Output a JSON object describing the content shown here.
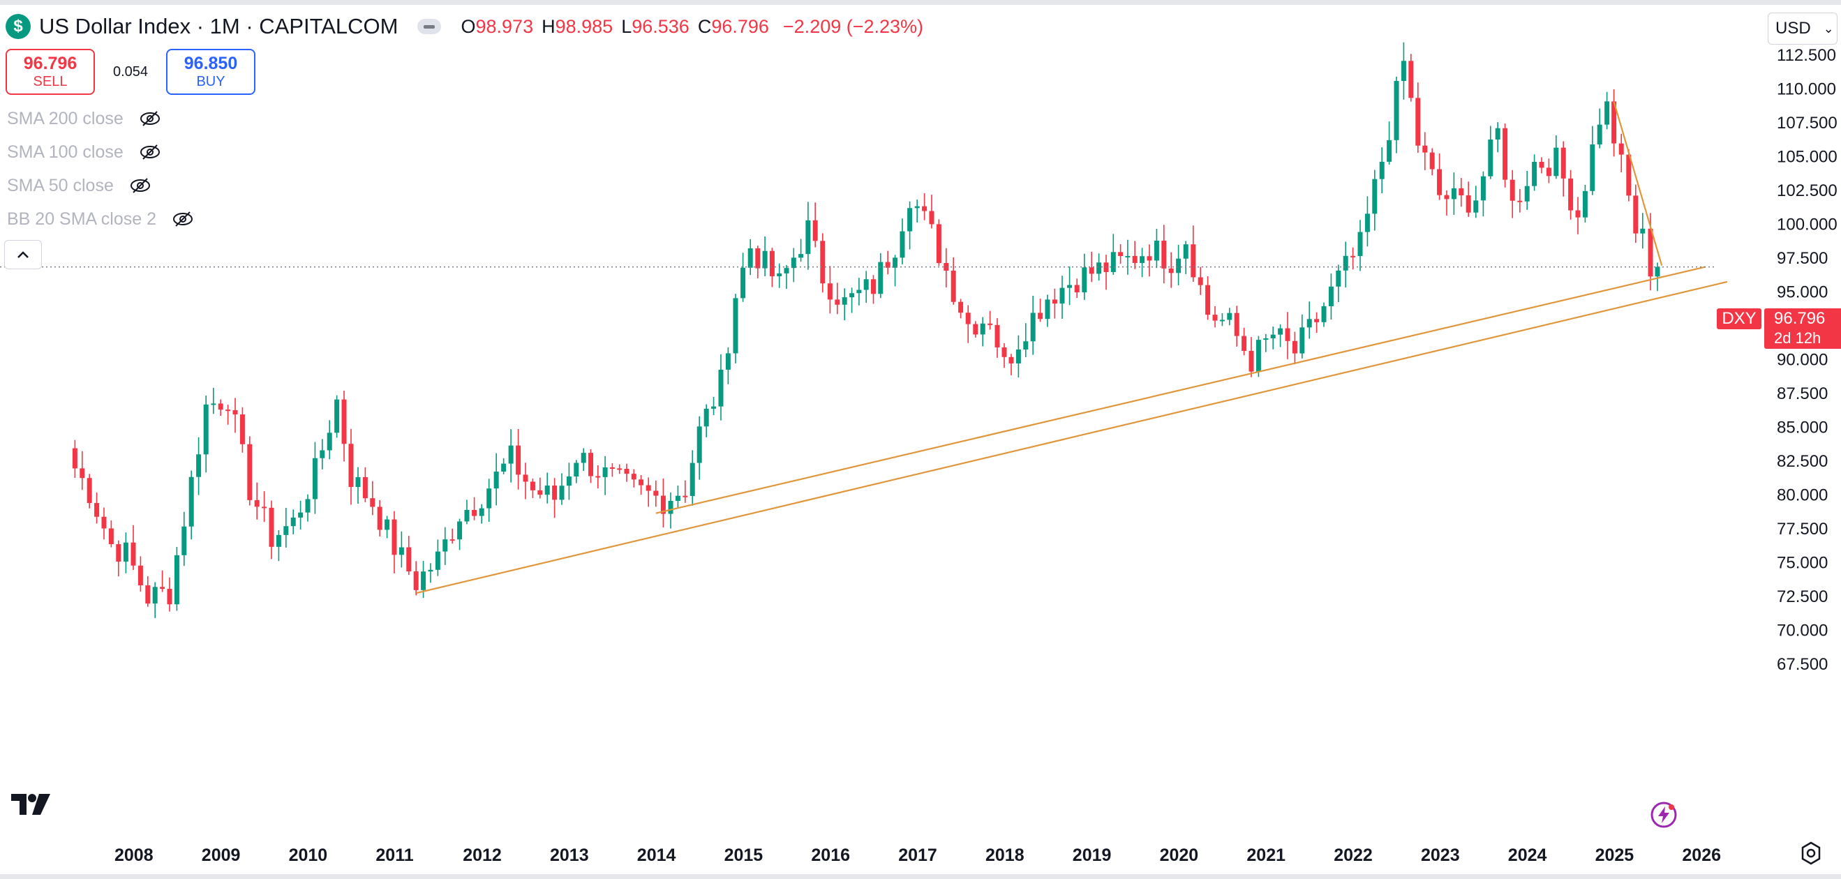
{
  "legend": {
    "logo_glyph": "$",
    "symbol_title": "US Dollar Index · 1M · CAPITALCOM",
    "open_label": "O",
    "open": "98.973",
    "high_label": "H",
    "high": "98.985",
    "low_label": "L",
    "low": "96.536",
    "close_label": "C",
    "close": "96.796",
    "change": "−2.209 (−2.23%)"
  },
  "trade": {
    "sell_price": "96.796",
    "sell_label": "SELL",
    "spread": "0.054",
    "buy_price": "96.850",
    "buy_label": "BUY"
  },
  "indicators": [
    {
      "label": "SMA 200 close",
      "icon": "eye-crossed-icon"
    },
    {
      "label": "SMA 100 close",
      "icon": "eye-crossed-icon"
    },
    {
      "label": "SMA 50 close",
      "icon": "eye-crossed-icon"
    },
    {
      "label": "BB 20 SMA close 2",
      "icon": "eye-crossed-icon"
    }
  ],
  "currency_selector": {
    "value": "USD",
    "icon": "chevron-down-icon"
  },
  "price_tag": {
    "symbol": "DXY",
    "price": "96.796",
    "countdown": "2d 12h"
  },
  "colors": {
    "up": "#089981",
    "down": "#f23645",
    "trendline": "#e0963a",
    "axis_text": "#131722",
    "grid_dotted": "#787b86"
  },
  "chart_data": {
    "type": "candlestick",
    "interval": "1M",
    "x_axis_labels": [
      "2008",
      "2009",
      "2010",
      "2011",
      "2012",
      "2013",
      "2014",
      "2015",
      "2016",
      "2017",
      "2018",
      "2019",
      "2020",
      "2021",
      "2022",
      "2023",
      "2024",
      "2025",
      "2026"
    ],
    "y_axis_labels": [
      "112.500",
      "110.000",
      "107.500",
      "105.000",
      "102.500",
      "100.000",
      "97.500",
      "95.000",
      "92.500",
      "90.000",
      "87.500",
      "85.000",
      "82.500",
      "80.000",
      "77.500",
      "75.000",
      "72.500",
      "70.000",
      "67.500"
    ],
    "ylim": [
      66.5,
      113.5
    ],
    "xlim": [
      2007.0,
      2026.6
    ],
    "last_price": 96.796,
    "monthly_close": [
      {
        "t": 2007.33,
        "c": 82.8
      },
      {
        "t": 2007.58,
        "c": 80.2
      },
      {
        "t": 2007.83,
        "c": 76.3
      },
      {
        "t": 2008.0,
        "c": 75.6
      },
      {
        "t": 2008.25,
        "c": 72.4
      },
      {
        "t": 2008.5,
        "c": 72.8
      },
      {
        "t": 2008.75,
        "c": 80.9
      },
      {
        "t": 2008.92,
        "c": 86.5
      },
      {
        "t": 2009.17,
        "c": 87.2
      },
      {
        "t": 2009.42,
        "c": 80.4
      },
      {
        "t": 2009.67,
        "c": 76.8
      },
      {
        "t": 2009.92,
        "c": 77.9
      },
      {
        "t": 2010.17,
        "c": 81.6
      },
      {
        "t": 2010.42,
        "c": 86.9
      },
      {
        "t": 2010.58,
        "c": 81.3
      },
      {
        "t": 2010.83,
        "c": 79.4
      },
      {
        "t": 2011.08,
        "c": 76.1
      },
      {
        "t": 2011.33,
        "c": 73.5
      },
      {
        "t": 2011.58,
        "c": 75.2
      },
      {
        "t": 2011.83,
        "c": 78.6
      },
      {
        "t": 2012.0,
        "c": 79.3
      },
      {
        "t": 2012.42,
        "c": 82.6
      },
      {
        "t": 2012.67,
        "c": 80.3
      },
      {
        "t": 2012.92,
        "c": 79.7
      },
      {
        "t": 2013.17,
        "c": 82.9
      },
      {
        "t": 2013.5,
        "c": 81.4
      },
      {
        "t": 2013.83,
        "c": 80.3
      },
      {
        "t": 2014.17,
        "c": 79.6
      },
      {
        "t": 2014.42,
        "c": 80.5
      },
      {
        "t": 2014.58,
        "c": 84.6
      },
      {
        "t": 2014.83,
        "c": 88.2
      },
      {
        "t": 2015.0,
        "c": 94.8
      },
      {
        "t": 2015.17,
        "c": 98.3
      },
      {
        "t": 2015.5,
        "c": 95.5
      },
      {
        "t": 2015.83,
        "c": 99.6
      },
      {
        "t": 2016.0,
        "c": 96.1
      },
      {
        "t": 2016.25,
        "c": 94.1
      },
      {
        "t": 2016.58,
        "c": 95.4
      },
      {
        "t": 2016.83,
        "c": 98.5
      },
      {
        "t": 2017.0,
        "c": 102.2
      },
      {
        "t": 2017.25,
        "c": 99.2
      },
      {
        "t": 2017.5,
        "c": 95.2
      },
      {
        "t": 2017.67,
        "c": 92.6
      },
      {
        "t": 2017.92,
        "c": 93.1
      },
      {
        "t": 2018.08,
        "c": 89.5
      },
      {
        "t": 2018.33,
        "c": 92.4
      },
      {
        "t": 2018.58,
        "c": 94.6
      },
      {
        "t": 2018.92,
        "c": 96.0
      },
      {
        "t": 2019.17,
        "c": 96.6
      },
      {
        "t": 2019.5,
        "c": 97.3
      },
      {
        "t": 2019.75,
        "c": 98.2
      },
      {
        "t": 2020.0,
        "c": 97.3
      },
      {
        "t": 2020.17,
        "c": 98.9
      },
      {
        "t": 2020.42,
        "c": 93.4
      },
      {
        "t": 2020.67,
        "c": 92.5
      },
      {
        "t": 2020.92,
        "c": 89.9
      },
      {
        "t": 2021.17,
        "c": 91.8
      },
      {
        "t": 2021.42,
        "c": 90.5
      },
      {
        "t": 2021.67,
        "c": 92.9
      },
      {
        "t": 2021.92,
        "c": 95.9
      },
      {
        "t": 2022.17,
        "c": 98.3
      },
      {
        "t": 2022.42,
        "c": 104.7
      },
      {
        "t": 2022.67,
        "c": 111.9
      },
      {
        "t": 2022.83,
        "c": 106.0
      },
      {
        "t": 2023.08,
        "c": 102.1
      },
      {
        "t": 2023.33,
        "c": 101.6
      },
      {
        "t": 2023.5,
        "c": 102.0
      },
      {
        "t": 2023.75,
        "c": 106.7
      },
      {
        "t": 2023.92,
        "c": 101.3
      },
      {
        "t": 2024.17,
        "c": 104.5
      },
      {
        "t": 2024.42,
        "c": 104.6
      },
      {
        "t": 2024.67,
        "c": 100.7
      },
      {
        "t": 2024.92,
        "c": 107.9
      },
      {
        "t": 2025.0,
        "c": 108.5
      },
      {
        "t": 2025.17,
        "c": 104.2
      },
      {
        "t": 2025.33,
        "c": 99.5
      },
      {
        "t": 2025.42,
        "c": 98.9
      },
      {
        "t": 2025.5,
        "c": 96.8
      }
    ],
    "trendlines": [
      {
        "from": {
          "t": 2011.25,
          "price": 72.7
        },
        "to": {
          "t": 2026.3,
          "price": 95.7
        }
      },
      {
        "from": {
          "t": 2014.0,
          "price": 78.6
        },
        "to": {
          "t": 2026.05,
          "price": 96.8
        }
      },
      {
        "from": {
          "t": 2025.0,
          "price": 109.0
        },
        "to": {
          "t": 2025.55,
          "price": 96.9
        }
      }
    ]
  }
}
